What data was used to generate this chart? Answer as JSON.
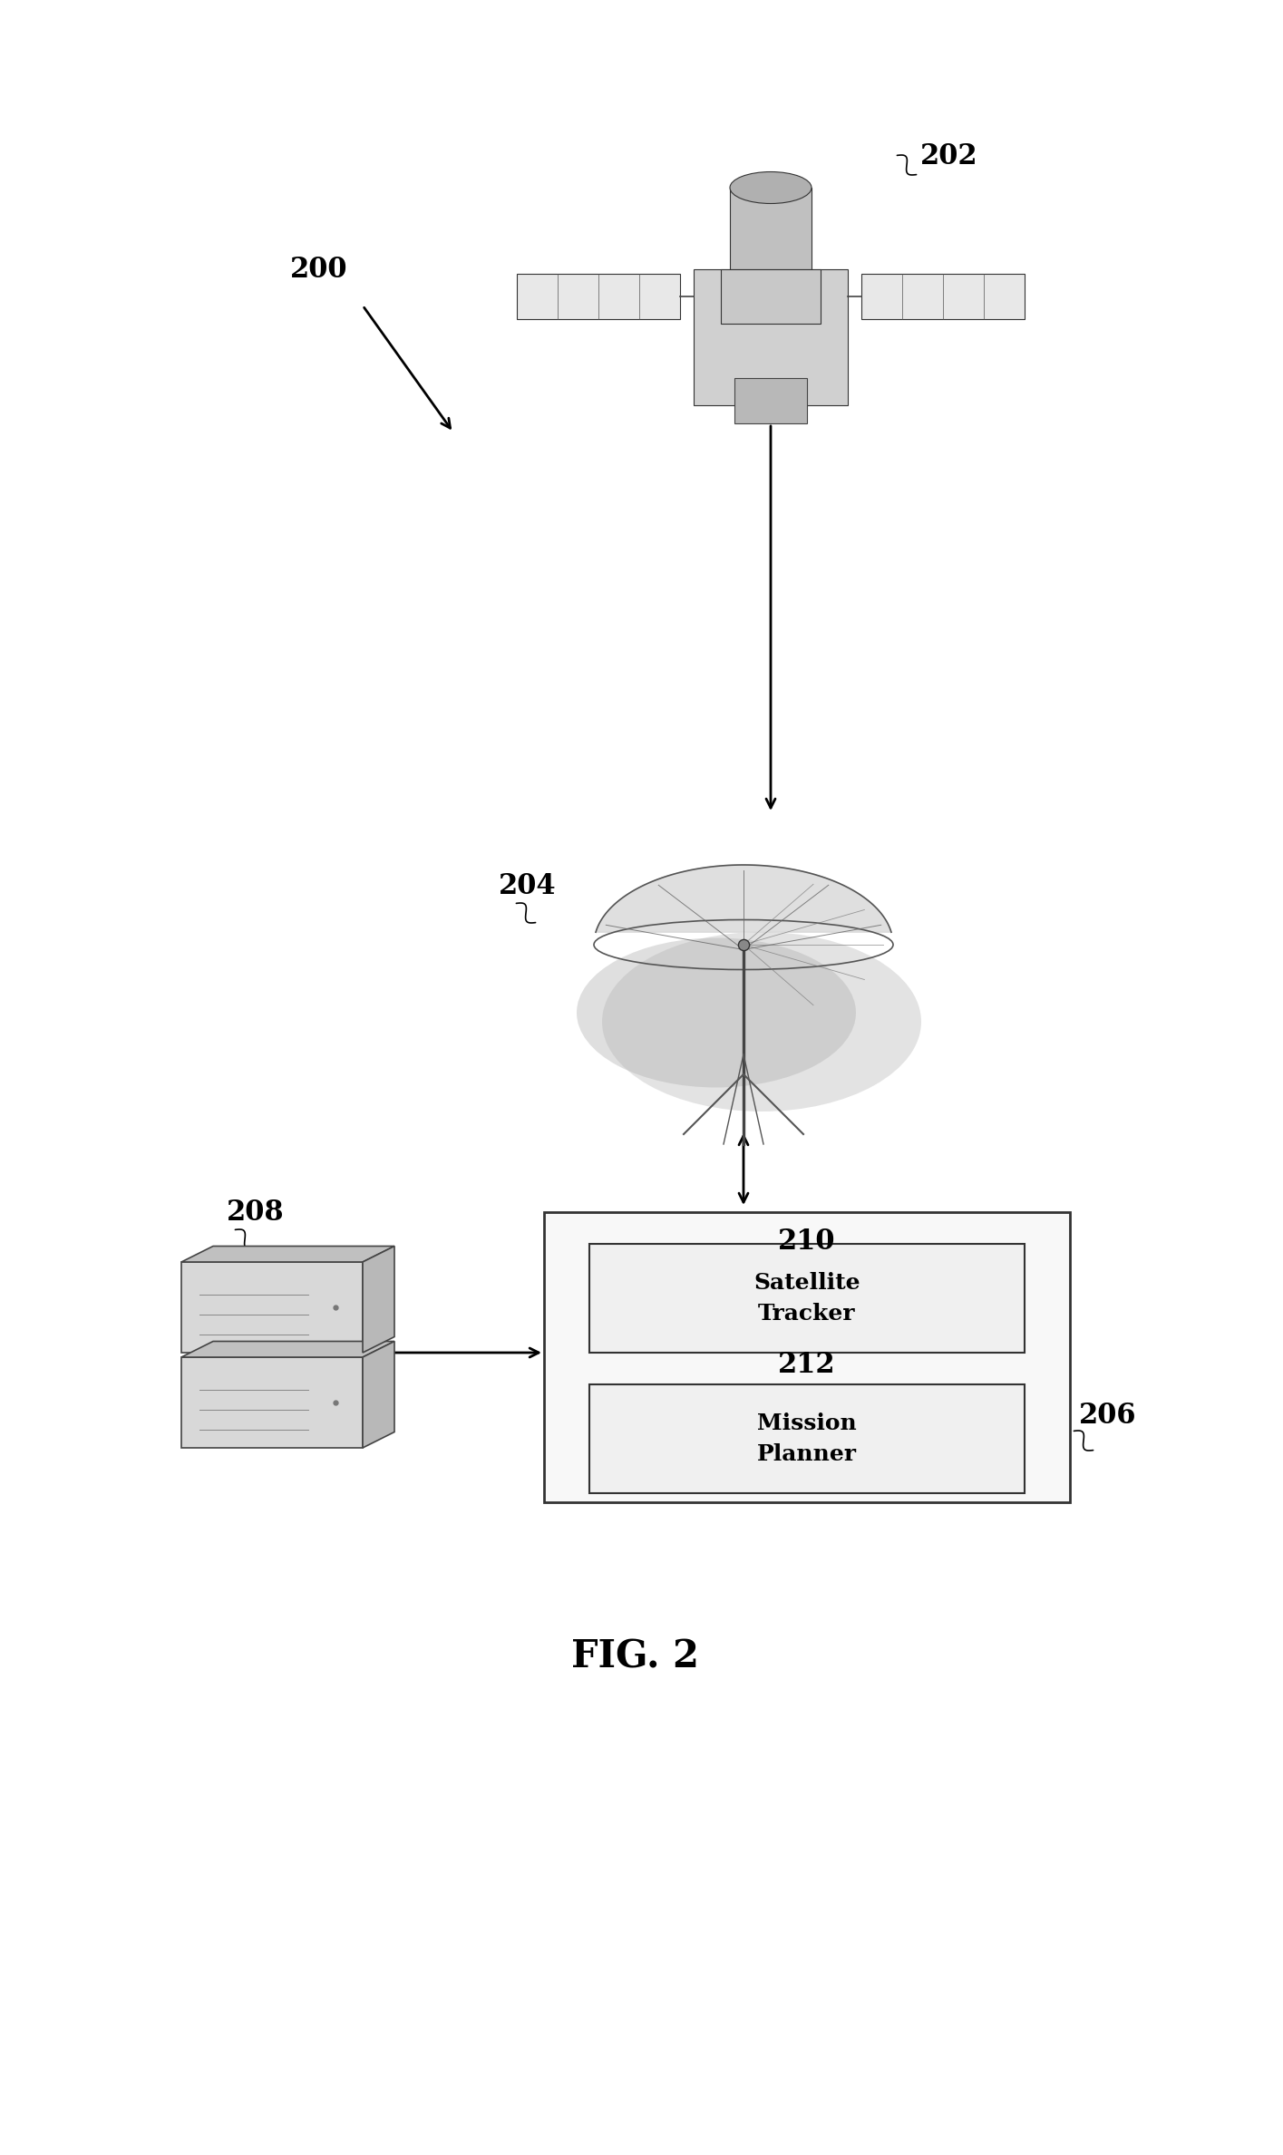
{
  "title": "FIG. 2",
  "bg_color": "#ffffff",
  "label_200": "200",
  "label_202": "202",
  "label_204": "204",
  "label_206": "206",
  "label_208": "208",
  "label_210": "210",
  "label_212": "212",
  "satellite_tracker_text": "Satellite\nTracker",
  "mission_planner_text": "Mission\nPlanner",
  "fig_label": "FIG. 2",
  "box_color": "#000000",
  "text_color": "#000000",
  "arrow_color": "#000000"
}
